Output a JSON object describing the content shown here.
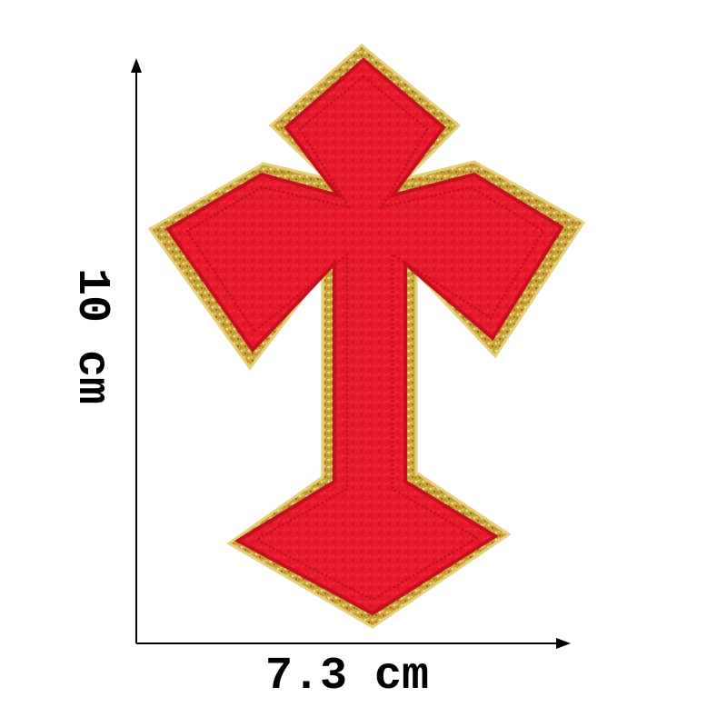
{
  "dimensions": {
    "height_label": "10 cm",
    "width_label": "7.3 cm"
  },
  "product": {
    "subject": "cross-patch",
    "colors": {
      "fill": "#e8192c",
      "fill_inner": "#ec2436",
      "stitch": "#c40f1f",
      "border_gold": "#c9a23a",
      "border_gold_light": "#e6cf7a",
      "background": "#ffffff",
      "axis": "#000000"
    }
  }
}
